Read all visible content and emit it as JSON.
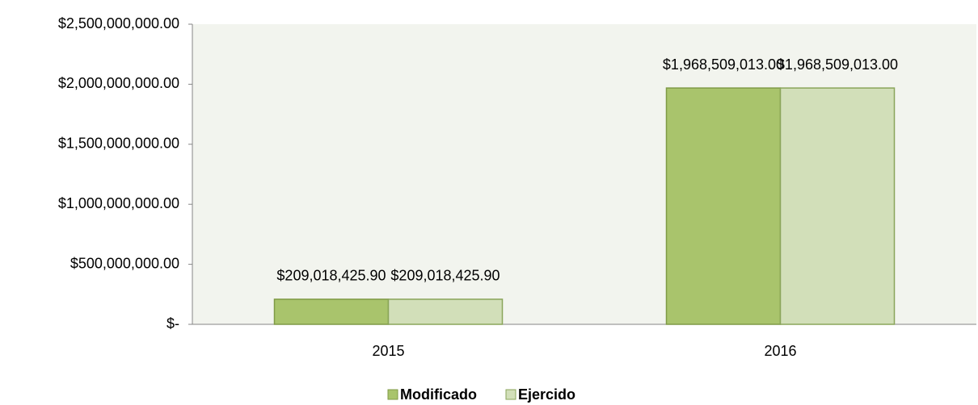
{
  "chart_data": {
    "type": "bar",
    "categories": [
      "2015",
      "2016"
    ],
    "series": [
      {
        "name": "Modificado",
        "color": "#a9c46c",
        "values": [
          209018425.9,
          1968509013
        ],
        "value_labels": [
          "$209,018,425.90",
          "$1,968,509,013.00"
        ]
      },
      {
        "name": "Ejercido",
        "color": "#d2dfb9",
        "values": [
          209018425.9,
          1968509013
        ],
        "value_labels": [
          "$209,018,425.90",
          "$1,968,509,013.00"
        ]
      }
    ],
    "ylim": [
      0,
      2500000000
    ],
    "yticks": [
      {
        "value": 0,
        "label": "$-"
      },
      {
        "value": 500000000,
        "label": "$500,000,000.00"
      },
      {
        "value": 1000000000,
        "label": "$1,000,000,000.00"
      },
      {
        "value": 1500000000,
        "label": "$1,500,000,000.00"
      },
      {
        "value": 2000000000,
        "label": "$2,000,000,000.00"
      },
      {
        "value": 2500000000,
        "label": "$2,500,000,000.00"
      }
    ],
    "grid": false,
    "legend": "bottom"
  }
}
